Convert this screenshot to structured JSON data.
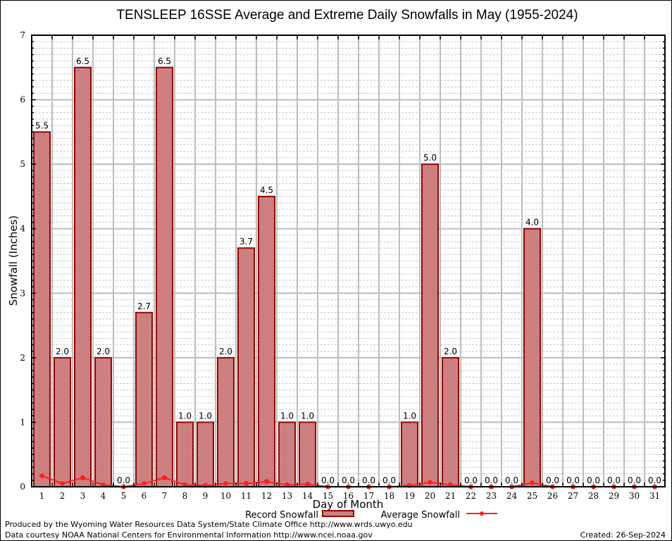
{
  "chart_data": {
    "type": "bar",
    "title": "TENSLEEP 16SSE Average and Extreme Daily Snowfalls in May (1955-2024)",
    "xlabel": "Day of Month",
    "ylabel": "Snowfall (Inches)",
    "ylim": [
      0,
      7
    ],
    "yticks": [
      "0",
      "1",
      "2",
      "3",
      "4",
      "5",
      "6",
      "7"
    ],
    "grid": true,
    "categories": [
      "1",
      "2",
      "3",
      "4",
      "5",
      "6",
      "7",
      "8",
      "9",
      "10",
      "11",
      "12",
      "13",
      "14",
      "15",
      "16",
      "17",
      "18",
      "19",
      "20",
      "21",
      "22",
      "23",
      "24",
      "25",
      "26",
      "27",
      "28",
      "29",
      "30",
      "31"
    ],
    "series": [
      {
        "name": "Record Snowfall",
        "type": "bar",
        "color": "#990000",
        "values": [
          5.5,
          2.0,
          6.5,
          2.0,
          0.0,
          2.7,
          6.5,
          1.0,
          1.0,
          2.0,
          3.7,
          4.5,
          1.0,
          1.0,
          0.0,
          0.0,
          0.0,
          0.0,
          1.0,
          5.0,
          2.0,
          0.0,
          0.0,
          0.0,
          4.0,
          0.0,
          0.0,
          0.0,
          0.0,
          0.0,
          0.0
        ],
        "labels": [
          "5.5",
          "2.0",
          "6.5",
          "2.0",
          "0.0",
          "2.7",
          "6.5",
          "1.0",
          "1.0",
          "2.0",
          "3.7",
          "4.5",
          "1.0",
          "1.0",
          "0.0",
          "0.0",
          "0.0",
          "0.0",
          "1.0",
          "5.0",
          "2.0",
          "0.0",
          "0.0",
          "0.0",
          "4.0",
          "0.0",
          "0.0",
          "0.0",
          "0.0",
          "0.0",
          "0.0"
        ]
      },
      {
        "name": "Average Snowfall",
        "type": "line",
        "color": "#ff2020",
        "values": [
          0.17,
          0.05,
          0.14,
          0.03,
          0.0,
          0.05,
          0.14,
          0.03,
          0.02,
          0.05,
          0.05,
          0.08,
          0.03,
          0.04,
          0.0,
          0.0,
          0.0,
          0.0,
          0.02,
          0.07,
          0.03,
          0.0,
          0.0,
          0.0,
          0.06,
          0.0,
          0.0,
          0.0,
          0.0,
          0.0,
          0.0
        ]
      }
    ],
    "legend_position": "bottom"
  },
  "footer": {
    "line1": "Produced by the Wyoming Water Resources Data System/State Climate Office http://www.wrds.uwyo.edu",
    "line2": "Data courtesy NOAA National Centers for Environmental Information http://www.ncei.noaa.gov",
    "created": "Created: 26-Sep-2024"
  }
}
